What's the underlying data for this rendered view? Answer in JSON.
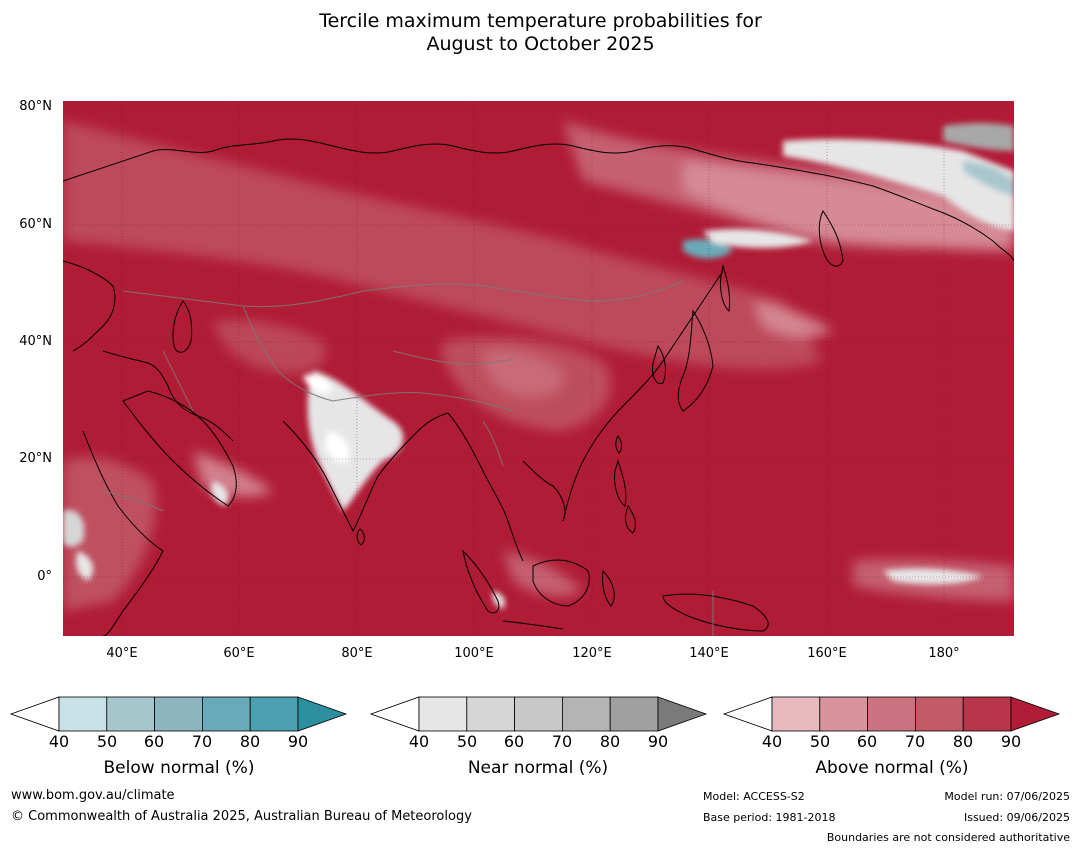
{
  "title_line1": "Tercile maximum temperature probabilities for",
  "title_line2": "August to October 2025",
  "lat_labels": [
    "80°N",
    "60°N",
    "40°N",
    "20°N",
    "0°"
  ],
  "lon_labels": [
    "40°E",
    "60°E",
    "80°E",
    "100°E",
    "120°E",
    "140°E",
    "160°E",
    "180°"
  ],
  "colorbars": [
    {
      "label": "Below normal (%)",
      "ticks": [
        "40",
        "50",
        "60",
        "70",
        "80",
        "90"
      ],
      "colors": [
        "#ffffff",
        "#c8e1e7",
        "#a8c7cd",
        "#8db5c0",
        "#6aaab8",
        "#4aa0b0",
        "#2b8fa0"
      ]
    },
    {
      "label": "Near normal (%)",
      "ticks": [
        "40",
        "50",
        "60",
        "70",
        "80",
        "90"
      ],
      "colors": [
        "#ffffff",
        "#e6e6e6",
        "#d6d6d6",
        "#c8c8c8",
        "#b4b4b4",
        "#a0a0a0",
        "#7a7a7a"
      ]
    },
    {
      "label": "Above normal (%)",
      "ticks": [
        "40",
        "50",
        "60",
        "70",
        "80",
        "90"
      ],
      "colors": [
        "#ffffff",
        "#e6b9bf",
        "#d8939c",
        "#ca727f",
        "#c25a67",
        "#b8364a",
        "#b01c36"
      ]
    }
  ],
  "footer": {
    "website": "www.bom.gov.au/climate",
    "copyright": "© Commonwealth of Australia 2025, Australian Bureau of Meteorology",
    "model": "Model: ACCESS-S2",
    "base_period": "Base period: 1981-2018",
    "model_run": "Model run: 07/06/2025",
    "issued": "Issued: 09/06/2025",
    "boundaries": "Boundaries are not considered authoritative"
  }
}
